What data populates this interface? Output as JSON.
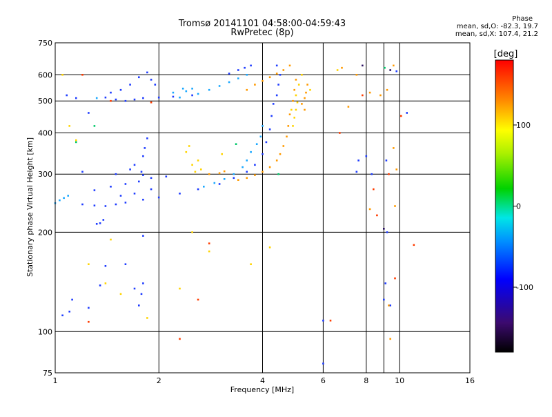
{
  "chart_data": {
    "type": "scatter",
    "title": "Tromsø 20141101 04:58:00-04:59:43",
    "subtitle": "RwPretec (8p)",
    "xlabel": "Frequency [MHz]",
    "ylabel": "Stationary phase Virtual Height [km]",
    "x_scale": "log",
    "y_scale": "log",
    "xlim": [
      1,
      16
    ],
    "ylim": [
      75,
      750
    ],
    "x_ticks": [
      1,
      2,
      4,
      6,
      8,
      10,
      16
    ],
    "x_minor_ticks": [
      9
    ],
    "y_ticks": [
      75,
      100,
      200,
      300,
      400,
      500,
      600,
      750
    ],
    "grid": true,
    "stats": {
      "heading": "Phase",
      "o_mode": "mean, sd,O: -82.3, 19.7",
      "x_mode": "mean, sd,X: 107.4, 21.2"
    },
    "colorbar": {
      "label": "[deg]",
      "range": [
        -180,
        180
      ],
      "ticks": [
        -100,
        0,
        100
      ]
    },
    "series": [
      {
        "name": "",
        "color": "#1e3cff",
        "points": [
          [
            1.2,
            243
          ],
          [
            1.3,
            241
          ],
          [
            1.4,
            240
          ],
          [
            1.5,
            243
          ],
          [
            1.6,
            246
          ],
          [
            1.8,
            251
          ],
          [
            2.0,
            255
          ],
          [
            2.3,
            262
          ],
          [
            2.6,
            270
          ],
          [
            3.0,
            280
          ],
          [
            3.3,
            292
          ],
          [
            3.6,
            305
          ],
          [
            3.8,
            320
          ],
          [
            4.0,
            345
          ],
          [
            4.1,
            375
          ],
          [
            4.2,
            410
          ],
          [
            4.25,
            450
          ],
          [
            4.3,
            490
          ],
          [
            1.3,
            268
          ],
          [
            1.45,
            275
          ],
          [
            1.6,
            280
          ],
          [
            1.75,
            285
          ],
          [
            1.9,
            292
          ],
          [
            2.1,
            295
          ],
          [
            1.5,
            300
          ],
          [
            1.65,
            310
          ],
          [
            1.8,
            298
          ],
          [
            1.7,
            262
          ],
          [
            1.55,
            258
          ],
          [
            1.8,
            340
          ],
          [
            1.82,
            360
          ],
          [
            1.85,
            385
          ],
          [
            1.7,
            320
          ],
          [
            1.9,
            270
          ],
          [
            1.78,
            305
          ],
          [
            1.4,
            512
          ],
          [
            1.5,
            505
          ],
          [
            1.6,
            500
          ],
          [
            1.7,
            505
          ],
          [
            1.8,
            510
          ],
          [
            2.0,
            512
          ],
          [
            2.2,
            515
          ],
          [
            2.5,
            520
          ],
          [
            1.45,
            530
          ],
          [
            1.55,
            540
          ],
          [
            1.65,
            560
          ],
          [
            1.75,
            590
          ],
          [
            1.85,
            610
          ],
          [
            1.9,
            580
          ],
          [
            1.95,
            560
          ],
          [
            3.2,
            605
          ],
          [
            3.4,
            620
          ],
          [
            3.55,
            630
          ],
          [
            3.7,
            640
          ],
          [
            4.4,
            640
          ],
          [
            4.5,
            600
          ],
          [
            4.45,
            560
          ],
          [
            4.4,
            520
          ],
          [
            1.05,
            112
          ],
          [
            1.12,
            125
          ],
          [
            1.25,
            118
          ],
          [
            1.35,
            138
          ],
          [
            1.4,
            158
          ],
          [
            1.6,
            160
          ],
          [
            1.7,
            135
          ],
          [
            1.75,
            120
          ],
          [
            1.78,
            130
          ],
          [
            1.8,
            140
          ],
          [
            1.8,
            195
          ],
          [
            1.1,
            115
          ],
          [
            1.25,
            460
          ],
          [
            1.15,
            510
          ],
          [
            1.08,
            520
          ],
          [
            1.2,
            305
          ],
          [
            1.35,
            213
          ],
          [
            1.38,
            218
          ],
          [
            1.32,
            212
          ],
          [
            9.2,
            200
          ],
          [
            9.1,
            140
          ],
          [
            9.0,
            125
          ],
          [
            9.4,
            120
          ],
          [
            9.8,
            615
          ],
          [
            7.6,
            330
          ],
          [
            7.5,
            305
          ],
          [
            8.0,
            340
          ],
          [
            8.3,
            300
          ],
          [
            6.0,
            80
          ],
          [
            6.0,
            108
          ],
          [
            9.15,
            330
          ],
          [
            10.5,
            460
          ]
        ]
      },
      {
        "name": "",
        "color": "#1aa8ff",
        "points": [
          [
            2.3,
            512
          ],
          [
            2.6,
            525
          ],
          [
            2.8,
            540
          ],
          [
            3.0,
            555
          ],
          [
            3.2,
            570
          ],
          [
            3.4,
            585
          ],
          [
            3.6,
            600
          ],
          [
            2.7,
            275
          ],
          [
            2.9,
            282
          ],
          [
            3.1,
            290
          ],
          [
            3.3,
            300
          ],
          [
            3.5,
            315
          ],
          [
            3.6,
            330
          ],
          [
            3.7,
            350
          ],
          [
            3.85,
            370
          ],
          [
            3.95,
            390
          ],
          [
            4.0,
            420
          ],
          [
            1.0,
            245
          ],
          [
            1.03,
            250
          ],
          [
            1.06,
            254
          ],
          [
            1.09,
            258
          ],
          [
            2.35,
            545
          ],
          [
            2.2,
            530
          ],
          [
            2.4,
            535
          ],
          [
            1.32,
            510
          ],
          [
            2.5,
            545
          ]
        ]
      },
      {
        "name": "",
        "color": "#ff9a00",
        "points": [
          [
            3.4,
            288
          ],
          [
            3.6,
            292
          ],
          [
            3.8,
            298
          ],
          [
            4.0,
            305
          ],
          [
            4.2,
            315
          ],
          [
            4.4,
            330
          ],
          [
            4.5,
            345
          ],
          [
            4.6,
            365
          ],
          [
            4.7,
            390
          ],
          [
            4.75,
            420
          ],
          [
            4.8,
            455
          ],
          [
            4.9,
            500
          ],
          [
            4.95,
            540
          ],
          [
            5.0,
            580
          ],
          [
            3.6,
            540
          ],
          [
            3.8,
            560
          ],
          [
            4.0,
            575
          ],
          [
            4.2,
            590
          ],
          [
            4.4,
            605
          ],
          [
            4.6,
            620
          ],
          [
            4.8,
            640
          ],
          [
            2.8,
            300
          ],
          [
            3.0,
            302
          ],
          [
            3.1,
            306
          ],
          [
            5.2,
            490
          ],
          [
            5.3,
            510
          ],
          [
            5.35,
            530
          ],
          [
            5.3,
            470
          ],
          [
            5.4,
            560
          ],
          [
            6.8,
            630
          ],
          [
            7.5,
            600
          ],
          [
            8.2,
            530
          ],
          [
            8.8,
            520
          ],
          [
            9.2,
            540
          ],
          [
            9.3,
            120
          ],
          [
            9.7,
            240
          ],
          [
            9.8,
            310
          ],
          [
            9.6,
            360
          ],
          [
            8.2,
            235
          ],
          [
            9.4,
            95
          ],
          [
            7.1,
            480
          ],
          [
            9.6,
            640
          ]
        ]
      },
      {
        "name": "",
        "color": "#ffd400",
        "points": [
          [
            4.85,
            470
          ],
          [
            4.9,
            420
          ],
          [
            4.95,
            445
          ],
          [
            5.0,
            470
          ],
          [
            5.05,
            495
          ],
          [
            5.0,
            520
          ],
          [
            5.1,
            560
          ],
          [
            5.2,
            600
          ],
          [
            2.4,
            350
          ],
          [
            2.45,
            365
          ],
          [
            2.5,
            320
          ],
          [
            2.55,
            305
          ],
          [
            2.6,
            330
          ],
          [
            2.65,
            310
          ],
          [
            1.05,
            600
          ],
          [
            1.1,
            420
          ],
          [
            1.15,
            380
          ],
          [
            1.25,
            160
          ],
          [
            1.4,
            140
          ],
          [
            1.45,
            190
          ],
          [
            1.55,
            130
          ],
          [
            1.85,
            110
          ],
          [
            2.3,
            135
          ],
          [
            2.5,
            200
          ],
          [
            2.8,
            175
          ],
          [
            3.05,
            345
          ],
          [
            3.7,
            160
          ],
          [
            4.2,
            180
          ],
          [
            5.5,
            540
          ],
          [
            6.6,
            620
          ]
        ]
      },
      {
        "name": "",
        "color": "#ff3c00",
        "points": [
          [
            1.25,
            107
          ],
          [
            1.2,
            600
          ],
          [
            1.45,
            500
          ],
          [
            1.9,
            495
          ],
          [
            2.3,
            95
          ],
          [
            2.6,
            125
          ],
          [
            2.8,
            185
          ],
          [
            6.3,
            108
          ],
          [
            6.7,
            400
          ],
          [
            7.8,
            520
          ],
          [
            8.4,
            270
          ],
          [
            8.6,
            225
          ],
          [
            9.3,
            300
          ],
          [
            10.1,
            450
          ],
          [
            11.0,
            183
          ],
          [
            9.7,
            145
          ]
        ]
      },
      {
        "name": "",
        "color": "#00c86a",
        "points": [
          [
            1.15,
            375
          ],
          [
            1.3,
            420
          ],
          [
            3.35,
            370
          ],
          [
            4.45,
            300
          ],
          [
            9.05,
            630
          ]
        ]
      },
      {
        "name": "",
        "color": "#2a1060",
        "points": [
          [
            7.8,
            640
          ],
          [
            9.0,
            205
          ],
          [
            9.4,
            620
          ]
        ]
      }
    ]
  }
}
